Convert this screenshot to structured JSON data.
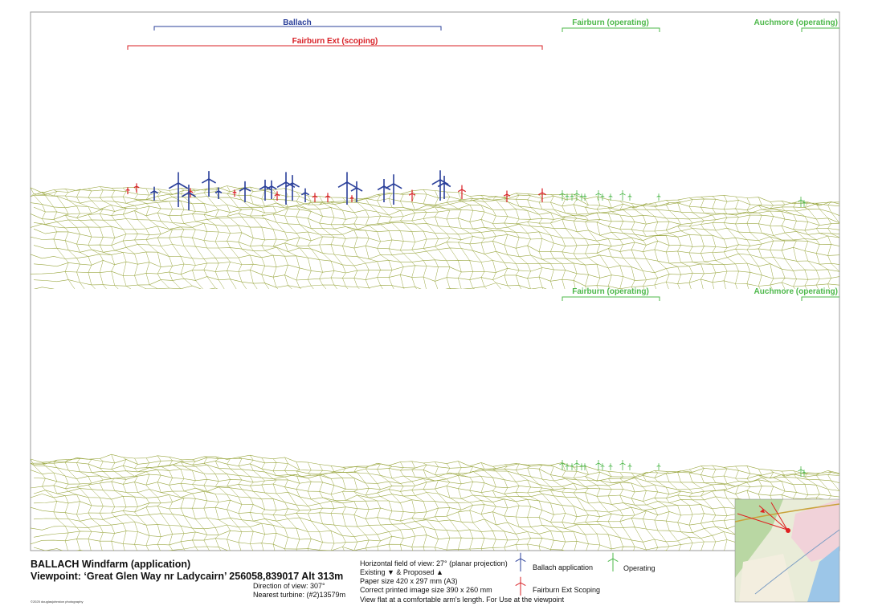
{
  "top_panel": {
    "labels": [
      "Ballach",
      "Fairburn Ext (scoping)",
      "Fairburn (operating)",
      "Auchmore (operating)"
    ]
  },
  "bottom_panel": {
    "labels": [
      "Fairburn (operating)",
      "Auchmore (operating)"
    ]
  },
  "footer": {
    "title": "BALLACH Windfarm (application)",
    "viewpoint": "Viewpoint: ‘Great Glen Way nr Ladycairn’ 256058,839017 Alt 313m",
    "direction": "Direction of view: 307°",
    "nearest": "Nearest turbine: (#2)13579m",
    "credit": "©2025 douglasjohnston photography",
    "info": [
      "Horizontal field of view: 27° (planar projection)",
      "Existing ▼ & Proposed ▲",
      "Paper size 420 x 297 mm (A3)",
      "Correct printed image size 390 x 260 mm",
      "View flat at a comfortable arm's length. For Use at the viewpoint"
    ],
    "legend": [
      "Ballach application",
      "Fairburn Ext Scoping",
      "Operating"
    ]
  }
}
